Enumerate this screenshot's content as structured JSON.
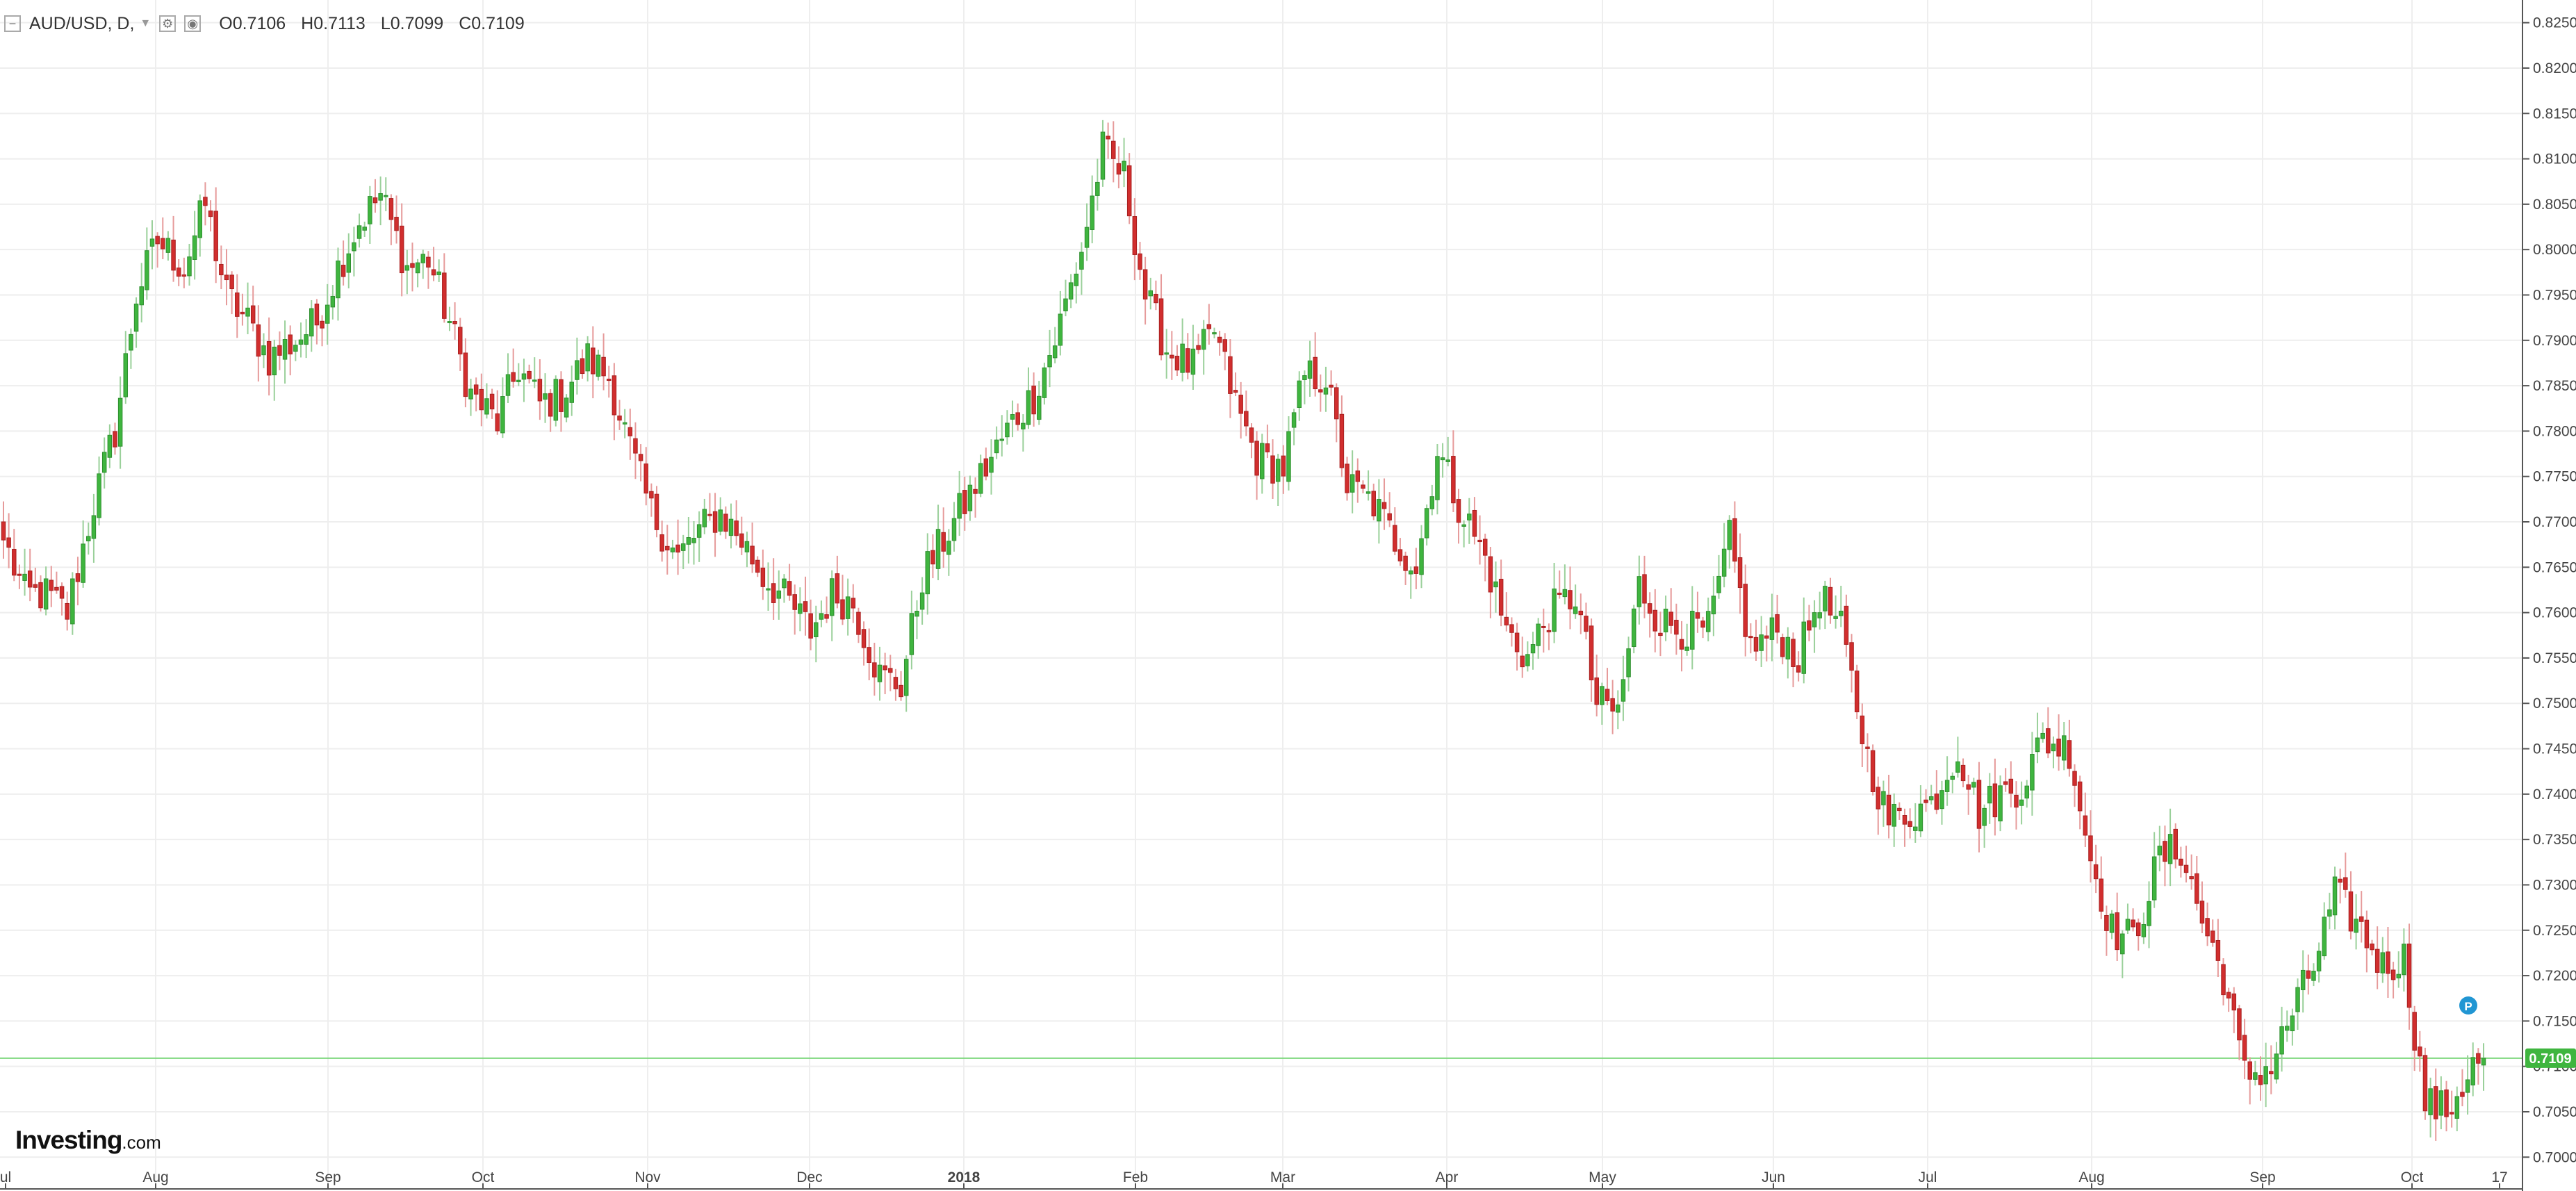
{
  "header": {
    "symbol": "AUD/USD, D,",
    "open": "O0.7106",
    "high": "H0.7113",
    "low": "L0.7099",
    "close": "C0.7109"
  },
  "logo": {
    "main": "Investing",
    "suffix": ".com"
  },
  "marker_label": "P",
  "chart_data": {
    "type": "candlestick",
    "ylim": [
      0.6965,
      0.8275
    ],
    "yticks": [
      "0.7000",
      "0.7050",
      "0.7100",
      "0.7150",
      "0.7200",
      "0.7250",
      "0.7300",
      "0.7350",
      "0.7400",
      "0.7450",
      "0.7500",
      "0.7550",
      "0.7600",
      "0.7650",
      "0.7700",
      "0.7750",
      "0.7800",
      "0.7850",
      "0.7900",
      "0.7950",
      "0.8000",
      "0.8050",
      "0.8100",
      "0.8150",
      "0.8200",
      "0.8250"
    ],
    "xticks": [
      "ul",
      "Aug",
      "Sep",
      "Oct",
      "Nov",
      "Dec",
      "2018",
      "Feb",
      "Mar",
      "Apr",
      "May",
      "Jun",
      "Jul",
      "Aug",
      "Sep",
      "Oct",
      "17"
    ],
    "last_price": "0.7109",
    "last_price_value": 0.7109,
    "bullish_color": "#3fb53f",
    "bearish_color": "#d12e2e",
    "price_line_color": "#7ed87e",
    "marker_color": "#2196d3",
    "close_path": [
      [
        0,
        0.768
      ],
      [
        4,
        0.762
      ],
      [
        8,
        0.762
      ],
      [
        12,
        0.76
      ],
      [
        17,
        0.772
      ],
      [
        21,
        0.78
      ],
      [
        25,
        0.795
      ],
      [
        29,
        0.801
      ],
      [
        34,
        0.798
      ],
      [
        38,
        0.805
      ],
      [
        42,
        0.795
      ],
      [
        46,
        0.792
      ],
      [
        50,
        0.788
      ],
      [
        55,
        0.79
      ],
      [
        59,
        0.792
      ],
      [
        63,
        0.798
      ],
      [
        67,
        0.803
      ],
      [
        71,
        0.806
      ],
      [
        76,
        0.798
      ],
      [
        80,
        0.799
      ],
      [
        84,
        0.792
      ],
      [
        88,
        0.784
      ],
      [
        93,
        0.781
      ],
      [
        97,
        0.787
      ],
      [
        101,
        0.783
      ],
      [
        105,
        0.784
      ],
      [
        110,
        0.788
      ],
      [
        114,
        0.786
      ],
      [
        118,
        0.778
      ],
      [
        122,
        0.771
      ],
      [
        127,
        0.766
      ],
      [
        131,
        0.769
      ],
      [
        135,
        0.771
      ],
      [
        139,
        0.768
      ],
      [
        143,
        0.764
      ],
      [
        148,
        0.761
      ],
      [
        152,
        0.758
      ],
      [
        156,
        0.762
      ],
      [
        160,
        0.761
      ],
      [
        165,
        0.753
      ],
      [
        169,
        0.752
      ],
      [
        173,
        0.764
      ],
      [
        177,
        0.768
      ],
      [
        181,
        0.772
      ],
      [
        186,
        0.777
      ],
      [
        190,
        0.781
      ],
      [
        194,
        0.784
      ],
      [
        198,
        0.79
      ],
      [
        203,
        0.8
      ],
      [
        207,
        0.811
      ],
      [
        211,
        0.808
      ],
      [
        215,
        0.795
      ],
      [
        219,
        0.789
      ],
      [
        224,
        0.787
      ],
      [
        228,
        0.791
      ],
      [
        232,
        0.783
      ],
      [
        236,
        0.777
      ],
      [
        241,
        0.776
      ],
      [
        245,
        0.786
      ],
      [
        249,
        0.786
      ],
      [
        253,
        0.774
      ],
      [
        258,
        0.772
      ],
      [
        262,
        0.768
      ],
      [
        266,
        0.765
      ],
      [
        270,
        0.778
      ],
      [
        274,
        0.772
      ],
      [
        279,
        0.766
      ],
      [
        283,
        0.758
      ],
      [
        287,
        0.755
      ],
      [
        291,
        0.76
      ],
      [
        296,
        0.762
      ],
      [
        300,
        0.75
      ],
      [
        304,
        0.749
      ],
      [
        308,
        0.763
      ],
      [
        312,
        0.759
      ],
      [
        317,
        0.758
      ],
      [
        321,
        0.758
      ],
      [
        325,
        0.768
      ],
      [
        329,
        0.756
      ],
      [
        334,
        0.758
      ],
      [
        338,
        0.755
      ],
      [
        342,
        0.762
      ],
      [
        346,
        0.758
      ],
      [
        351,
        0.744
      ],
      [
        355,
        0.737
      ],
      [
        359,
        0.738
      ],
      [
        363,
        0.739
      ],
      [
        368,
        0.745
      ],
      [
        372,
        0.738
      ],
      [
        376,
        0.74
      ],
      [
        380,
        0.741
      ],
      [
        384,
        0.746
      ],
      [
        389,
        0.745
      ],
      [
        393,
        0.733
      ],
      [
        397,
        0.725
      ],
      [
        401,
        0.724
      ],
      [
        406,
        0.733
      ],
      [
        410,
        0.734
      ],
      [
        414,
        0.726
      ],
      [
        418,
        0.72
      ],
      [
        422,
        0.709
      ],
      [
        427,
        0.71
      ],
      [
        431,
        0.716
      ],
      [
        435,
        0.721
      ],
      [
        439,
        0.729
      ],
      [
        444,
        0.725
      ],
      [
        448,
        0.721
      ],
      [
        452,
        0.722
      ],
      [
        456,
        0.706
      ],
      [
        460,
        0.705
      ],
      [
        465,
        0.71
      ],
      [
        467,
        0.7109
      ]
    ]
  }
}
